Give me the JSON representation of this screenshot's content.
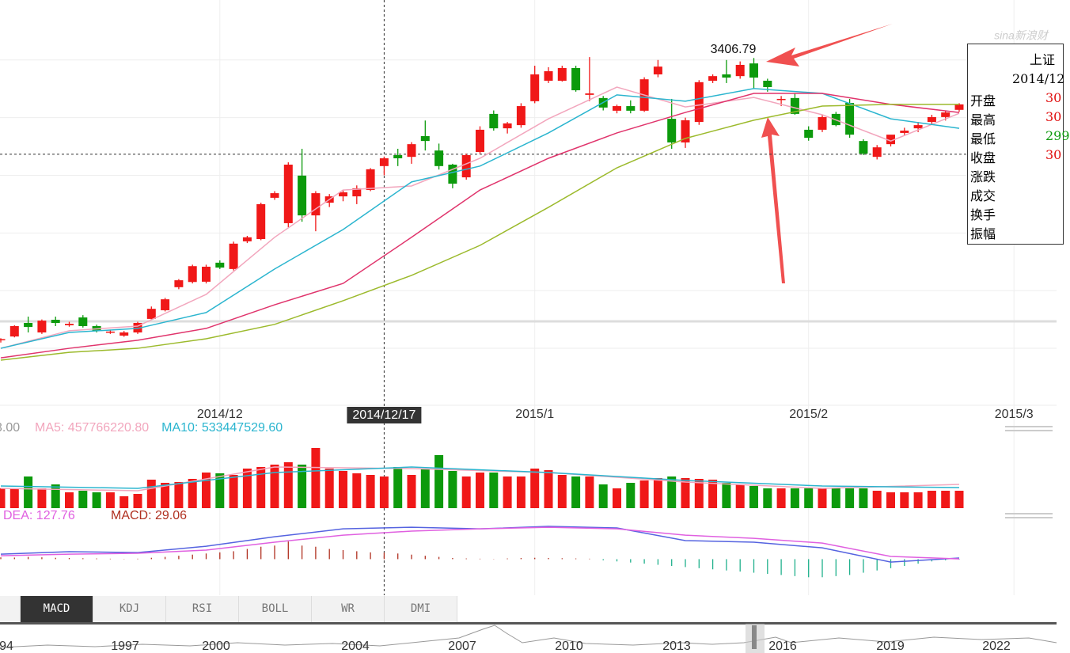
{
  "chart_data": {
    "type": "candlestick",
    "categories": [
      null,
      null,
      null,
      null,
      null,
      null,
      null,
      null,
      null,
      null,
      null,
      null,
      null,
      null,
      null,
      null,
      "2014/12",
      null,
      null,
      null,
      null,
      null,
      null,
      null,
      null,
      null,
      null,
      null,
      "2014/12/17",
      null,
      null,
      null,
      null,
      null,
      null,
      null,
      null,
      null,
      null,
      "2015/1",
      null,
      null,
      null,
      null,
      null,
      null,
      null,
      null,
      null,
      null,
      null,
      null,
      null,
      null,
      null,
      null,
      null,
      null,
      null,
      "2015/2",
      null,
      null,
      null,
      null,
      null,
      null,
      null,
      null,
      null,
      null,
      null,
      null,
      null,
      null,
      "2015/3"
    ],
    "crosshair_index": 28,
    "crosshair_y": 3073,
    "open": [
      2428,
      2441,
      2488,
      2455,
      2499,
      2480,
      2507,
      2477,
      2455,
      2444,
      2455,
      2502,
      2532,
      2612,
      2630,
      2631,
      2697,
      2675,
      2771,
      2779,
      2922,
      2834,
      2999,
      2861,
      2905,
      2927,
      2927,
      2949,
      3032,
      3070,
      3064,
      3136,
      3086,
      3037,
      2993,
      3081,
      3213,
      3163,
      3174,
      3257,
      3328,
      3328,
      3372,
      3279,
      3268,
      3224,
      3240,
      3224,
      3350,
      3196,
      3114,
      3185,
      3328,
      3350,
      3344,
      3388,
      3328,
      3262,
      3268,
      3158,
      3158,
      3213,
      3251,
      3119,
      3064,
      3108,
      3147,
      3163,
      3185,
      3202,
      3227,
      null,
      null,
      null,
      null
    ],
    "high": [
      2435,
      2480,
      2510,
      2500,
      2510,
      2492,
      2515,
      2482,
      2465,
      2460,
      2492,
      2545,
      2575,
      2640,
      2690,
      2690,
      2705,
      2770,
      2790,
      2905,
      2945,
      3045,
      3092,
      2945,
      2935,
      2950,
      2965,
      3025,
      3065,
      3092,
      3115,
      3190,
      3110,
      3040,
      3075,
      3170,
      3225,
      3185,
      3250,
      3380,
      3375,
      3380,
      3380,
      3410,
      3275,
      3245,
      3260,
      3340,
      3400,
      3265,
      3200,
      3330,
      3350,
      3400,
      3395,
      3406.79,
      3335,
      3275,
      3285,
      3170,
      3210,
      3220,
      3265,
      3125,
      3105,
      3140,
      3165,
      3185,
      3210,
      3225,
      3250,
      null,
      null,
      null,
      null
    ],
    "low": [
      2420,
      2438,
      2455,
      2450,
      2477,
      2475,
      2472,
      2455,
      2450,
      2440,
      2450,
      2498,
      2528,
      2605,
      2625,
      2625,
      2675,
      2670,
      2765,
      2775,
      2915,
      2820,
      2839,
      2806,
      2890,
      2910,
      2900,
      2945,
      3000,
      3032,
      3040,
      3086,
      3020,
      2955,
      2985,
      3075,
      3155,
      3145,
      3165,
      3250,
      3320,
      3325,
      3290,
      3257,
      3225,
      3215,
      3215,
      3220,
      3340,
      3092,
      3095,
      3175,
      3320,
      3320,
      3335,
      3300,
      3290,
      3240,
      3210,
      3120,
      3150,
      3170,
      3130,
      3070,
      3055,
      3100,
      3140,
      3150,
      3175,
      3190,
      3220,
      null,
      null,
      null,
      null
    ],
    "close": [
      2432,
      2477,
      2474,
      2496,
      2488,
      2485,
      2477,
      2461,
      2458,
      2455,
      2488,
      2537,
      2570,
      2636,
      2685,
      2683,
      2680,
      2763,
      2785,
      2900,
      2938,
      3037,
      2861,
      2938,
      2927,
      2941,
      2955,
      3021,
      3059,
      3059,
      3108,
      3119,
      3032,
      2971,
      3070,
      3158,
      3163,
      3180,
      3240,
      3350,
      3361,
      3372,
      3295,
      3284,
      3235,
      3240,
      3224,
      3333,
      3377,
      3114,
      3191,
      3323,
      3344,
      3339,
      3383,
      3339,
      3306,
      3265,
      3213,
      3130,
      3202,
      3174,
      3141,
      3075,
      3097,
      3141,
      3155,
      3174,
      3202,
      3218,
      3246,
      null,
      null,
      null,
      null
    ],
    "high_label_index": 55,
    "up_color": "#f01818",
    "down_color": "#0c9a0c",
    "ylim": [
      2208,
      3608
    ],
    "yticks": [
      2400,
      2600,
      2800,
      3000,
      3200,
      3400
    ],
    "grid": true,
    "ma_lines": [
      {
        "color": "#f2a6bd",
        "x": [
          0,
          5,
          10,
          15,
          20,
          25,
          30,
          35,
          40,
          45,
          50,
          55,
          60,
          65,
          70
        ],
        "values": [
          2400,
          2461,
          2477,
          2587,
          2785,
          2949,
          2963,
          3059,
          3196,
          3306,
          3237,
          3270,
          3210,
          3119,
          3215
        ]
      },
      {
        "color": "#2bb5cf",
        "x": [
          0,
          5,
          10,
          15,
          20,
          25,
          30,
          35,
          40,
          45,
          50,
          55,
          60,
          65,
          70
        ],
        "values": [
          2400,
          2455,
          2469,
          2524,
          2675,
          2812,
          2977,
          3032,
          3147,
          3279,
          3257,
          3301,
          3284,
          3196,
          3163
        ]
      },
      {
        "color": "#e0346c",
        "x": [
          0,
          5,
          10,
          15,
          20,
          25,
          30,
          35,
          40,
          45,
          50,
          55,
          60,
          65,
          70
        ],
        "values": [
          2367,
          2400,
          2428,
          2469,
          2551,
          2625,
          2785,
          2949,
          3059,
          3147,
          3218,
          3284,
          3284,
          3246,
          3218
        ]
      },
      {
        "color": "#9cba2c",
        "x": [
          0,
          5,
          10,
          15,
          20,
          25,
          30,
          35,
          40,
          45,
          50,
          55,
          60,
          65,
          70
        ],
        "values": [
          2359,
          2386,
          2400,
          2433,
          2483,
          2565,
          2653,
          2757,
          2889,
          3026,
          3128,
          3191,
          3240,
          3246,
          3246
        ]
      }
    ],
    "volume": {
      "ylim": [
        0,
        1200000000
      ],
      "values": [
        375000000,
        375000000,
        600000000,
        375000000,
        450000000,
        300000000,
        330000000,
        300000000,
        300000000,
        225000000,
        270000000,
        540000000,
        480000000,
        495000000,
        555000000,
        675000000,
        660000000,
        630000000,
        750000000,
        780000000,
        825000000,
        870000000,
        825000000,
        1140000000,
        750000000,
        705000000,
        660000000,
        630000000,
        600000000,
        780000000,
        630000000,
        750000000,
        1005000000,
        705000000,
        600000000,
        675000000,
        675000000,
        600000000,
        600000000,
        750000000,
        720000000,
        630000000,
        600000000,
        600000000,
        450000000,
        375000000,
        480000000,
        525000000,
        570000000,
        600000000,
        570000000,
        555000000,
        540000000,
        480000000,
        450000000,
        420000000,
        375000000,
        375000000,
        375000000,
        375000000,
        375000000,
        375000000,
        375000000,
        375000000,
        330000000,
        300000000,
        300000000,
        300000000,
        330000000,
        330000000,
        330000000,
        null,
        null,
        null,
        null
      ],
      "legend": [
        {
          "text": "3.00",
          "color": "#999999"
        },
        {
          "text": "MA5: 457766220.80",
          "color": "#f2a6bd"
        },
        {
          "text": "MA10: 533447529.60",
          "color": "#2bb5cf"
        }
      ],
      "lines": [
        {
          "color": "#f2a6bd",
          "x": [
            0,
            10,
            20,
            30,
            40,
            50,
            60,
            70
          ],
          "values": [
            375000000,
            330000000,
            780000000,
            750000000,
            675000000,
            495000000,
            375000000,
            450000000
          ]
        },
        {
          "color": "#2bb5cf",
          "x": [
            0,
            10,
            20,
            30,
            40,
            50,
            60,
            70
          ],
          "values": [
            420000000,
            375000000,
            675000000,
            780000000,
            675000000,
            525000000,
            420000000,
            390000000
          ]
        }
      ]
    },
    "macd": {
      "ylim": [
        -100,
        180
      ],
      "legend": [
        {
          "text": "DEA: 127.76",
          "color": "#e060e0"
        },
        {
          "text": "MACD: 29.06",
          "color": "#b03020"
        }
      ],
      "hist": [
        8,
        7,
        10,
        8,
        6,
        5,
        4,
        3,
        2,
        1,
        2,
        6,
        10,
        15,
        20,
        25,
        30,
        35,
        45,
        55,
        60,
        78,
        60,
        55,
        45,
        40,
        35,
        30,
        29,
        25,
        20,
        15,
        10,
        5,
        3,
        2,
        1,
        3,
        5,
        6,
        5,
        4,
        3,
        2,
        -5,
        -10,
        -15,
        -20,
        -25,
        -30,
        -35,
        -40,
        -45,
        -50,
        -55,
        -60,
        -65,
        -70,
        -75,
        -80,
        -80,
        -75,
        -70,
        -60,
        -50,
        -40,
        -30,
        -20,
        -10,
        -5,
        -2,
        null,
        null,
        null,
        null
      ],
      "hist_up_color": "#b03020",
      "hist_down_color": "#20b08c",
      "lines": [
        {
          "color": "#5563e0",
          "x": [
            0,
            5,
            10,
            15,
            20,
            25,
            30,
            35,
            40,
            45,
            50,
            55,
            60,
            65,
            70
          ],
          "values": [
            22,
            33,
            29,
            57,
            99,
            134,
            141,
            134,
            145,
            138,
            82,
            75,
            50,
            -13,
            5
          ]
        },
        {
          "color": "#e060e0",
          "x": [
            0,
            5,
            10,
            15,
            20,
            25,
            30,
            35,
            40,
            45,
            50,
            55,
            60,
            65,
            70
          ],
          "values": [
            15,
            22,
            26,
            40,
            75,
            106,
            124,
            134,
            141,
            134,
            106,
            92,
            71,
            12,
            1
          ]
        }
      ]
    }
  },
  "logo": "sina新浪财",
  "info_box": {
    "title": "上证",
    "date": "2014/12",
    "labels": [
      "开盘",
      "最高",
      "最低",
      "收盘",
      "涨跌",
      "成交",
      "换手",
      "振幅"
    ],
    "values": [
      {
        "text": "30",
        "color": "#e01010"
      },
      {
        "text": "30",
        "color": "#e01010"
      },
      {
        "text": "299",
        "color": "#0c9a0c"
      },
      {
        "text": "30",
        "color": "#e01010"
      }
    ]
  },
  "tabs": [
    "MACD",
    "KDJ",
    "RSI",
    "BOLL",
    "WR",
    "DMI"
  ],
  "selected_tab": 0,
  "overview_years": [
    "94",
    "1997",
    "2000",
    "2004",
    "2007",
    "2010",
    "2013",
    "2016",
    "2019",
    "2022"
  ]
}
